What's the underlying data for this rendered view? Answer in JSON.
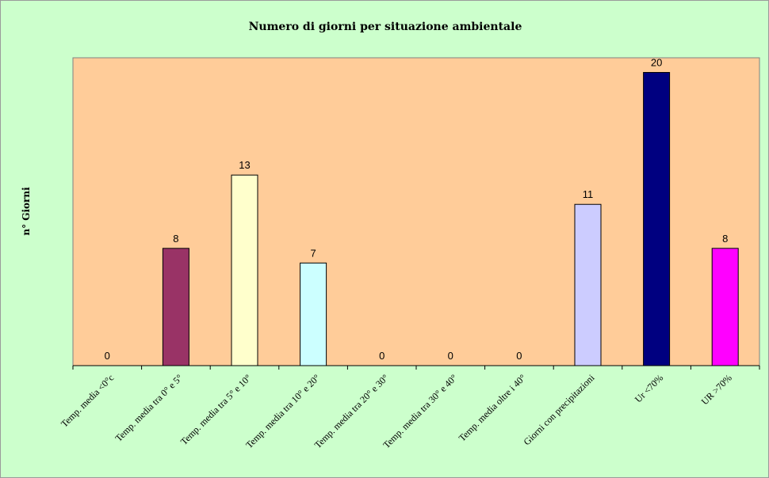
{
  "chart_data": {
    "type": "bar",
    "title": "Numero di giorni per situazione ambientale",
    "xlabel": "",
    "ylabel": "n° Giorni",
    "ylim": [
      0,
      21
    ],
    "grid": false,
    "legend": "none",
    "categories": [
      "Temp. media <0°c",
      "Temp. media tra 0° e 5°",
      "Temp. media tra 5° e 10°",
      "Temp. media tra 10° e 20°",
      "Temp. media tra 20° e 30°",
      "Temp. media tra 30° e 40°",
      "Temp. media oltre i 40°",
      "Giorni con precipitazioni",
      "Ur <70%",
      "UR >70%"
    ],
    "values": [
      0,
      8,
      13,
      7,
      0,
      0,
      0,
      11,
      20,
      8
    ],
    "bar_colors": [
      "#ffcc99",
      "#993366",
      "#ffffcc",
      "#ccffff",
      "#ffcc99",
      "#ffcc99",
      "#ffcc99",
      "#ccccff",
      "#000080",
      "#ff00ff"
    ],
    "colors": {
      "background": "#ccffcc",
      "plot_area": "#ffcc99",
      "axis": "#000000"
    }
  }
}
